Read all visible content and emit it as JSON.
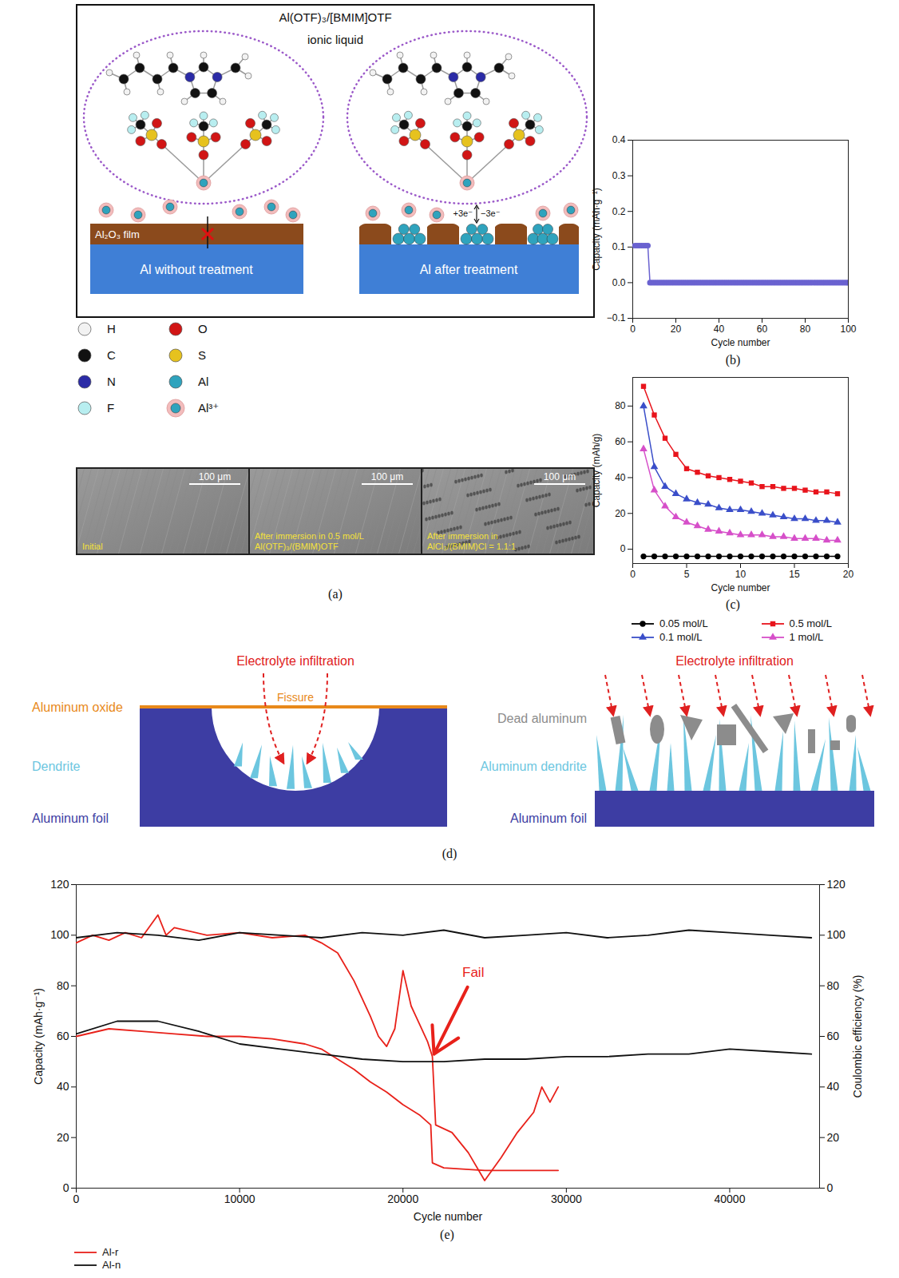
{
  "panels": {
    "a": {
      "label": "(a)",
      "schematic": {
        "title": "Al(OTF)₃/[BMIM]OTF",
        "subtitle": "ionic liquid",
        "film": "Al₂O₃ film",
        "left_substrate": "Al without treatment",
        "right_substrate": "Al after treatment",
        "reduction": "+3e⁻",
        "oxidation": "−3e⁻"
      },
      "atom_legend": [
        {
          "name": "H",
          "color": "#f2f2f2"
        },
        {
          "name": "C",
          "color": "#111111"
        },
        {
          "name": "N",
          "color": "#2b2ba6"
        },
        {
          "name": "F",
          "color": "#b8eef0"
        },
        {
          "name": "O",
          "color": "#d11515"
        },
        {
          "name": "S",
          "color": "#e6c21e"
        },
        {
          "name": "Al",
          "color": "#2fa3bd"
        },
        {
          "name": "Al³⁺",
          "color": "#f2bcbc"
        }
      ],
      "micrographs": [
        {
          "caption": "Initial",
          "scale_bar": "100 μm"
        },
        {
          "caption": "After immersion in 0.5 mol/L Al(OTF)₃/(BMIM)OTF",
          "scale_bar": "100 μm"
        },
        {
          "caption": "After immersion in AlCl₃/(BMIM)Cl = 1.1:1",
          "scale_bar": "100 μm"
        }
      ]
    },
    "d": {
      "label": "(d)",
      "left": {
        "infiltration": {
          "text": "Electrolyte infiltration",
          "color": "#e02020"
        },
        "crack": "Fissure",
        "layers": [
          {
            "name": "Aluminum oxide",
            "color": "#e8891a"
          },
          {
            "name": "Dendrite",
            "color": "#6cc6df"
          },
          {
            "name": "Aluminum foil",
            "color": "#3d3da3"
          }
        ]
      },
      "right": {
        "infiltration": {
          "text": "Electrolyte infiltration",
          "color": "#e02020"
        },
        "layers": [
          {
            "name": "Dead aluminum",
            "color": "#8c8c8c"
          },
          {
            "name": "Aluminum dendrite",
            "color": "#6cc6df"
          },
          {
            "name": "Aluminum foil",
            "color": "#3d3da3"
          }
        ]
      }
    }
  },
  "chart_data": [
    {
      "type": "line",
      "label": "(b)",
      "x_label": "Cycle number",
      "y_label": "Capacity (mAh·g⁻¹)",
      "color": "#6a62d0",
      "marker": "circle",
      "xlim": [
        0,
        100
      ],
      "xticks": [
        0,
        20,
        40,
        60,
        80,
        100
      ],
      "ylim": [
        -0.1,
        0.4
      ],
      "yticks": [
        {
          "value": -0.1,
          "label": "−0.1"
        },
        {
          "value": 0,
          "label": "0.0"
        },
        0.1,
        0.2,
        0.3,
        0.4
      ],
      "x": [
        1,
        2,
        3,
        4,
        5,
        6,
        7,
        8,
        9,
        10,
        11,
        12,
        13,
        14,
        15,
        16,
        17,
        18,
        19,
        20,
        21,
        22,
        23,
        24,
        25,
        26,
        27,
        28,
        29,
        30,
        31,
        32,
        33,
        34,
        35,
        36,
        37,
        38,
        39,
        40,
        41,
        42,
        43,
        44,
        45,
        46,
        47,
        48,
        49,
        50,
        51,
        52,
        53,
        54,
        55,
        56,
        57,
        58,
        59,
        60,
        61,
        62,
        63,
        64,
        65,
        66,
        67,
        68,
        69,
        70,
        71,
        72,
        73,
        74,
        75,
        76,
        77,
        78,
        79,
        80,
        81,
        82,
        83,
        84,
        85,
        86,
        87,
        88,
        89,
        90,
        91,
        92,
        93,
        94,
        95,
        96,
        97,
        98,
        99,
        100
      ],
      "values": [
        0.104,
        0.104,
        0.104,
        0.104,
        0.104,
        0.104,
        0.104,
        0,
        0,
        0,
        0,
        0,
        0,
        0,
        0,
        0,
        0,
        0,
        0,
        0,
        0,
        0,
        0,
        0,
        0,
        0,
        0,
        0,
        0,
        0,
        0,
        0,
        0,
        0,
        0,
        0,
        0,
        0,
        0,
        0,
        0,
        0,
        0,
        0,
        0,
        0,
        0,
        0,
        0,
        0,
        0,
        0,
        0,
        0,
        0,
        0,
        0,
        0,
        0,
        0,
        0,
        0,
        0,
        0,
        0,
        0,
        0,
        0,
        0,
        0,
        0,
        0,
        0,
        0,
        0,
        0,
        0,
        0,
        0,
        0,
        0,
        0,
        0,
        0,
        0,
        0,
        0,
        0,
        0,
        0,
        0,
        0,
        0,
        0,
        0,
        0,
        0,
        0,
        0,
        0
      ]
    },
    {
      "type": "line",
      "label": "(c)",
      "x_label": "Cycle number",
      "y_label": "Capacity (mAh/g)",
      "legend": "bottom",
      "xlim": [
        0,
        20
      ],
      "xticks": [
        0,
        5,
        10,
        15,
        20
      ],
      "ylim": [
        -8,
        96
      ],
      "yticks": [
        0,
        20,
        40,
        60,
        80
      ],
      "x": [
        1,
        2,
        3,
        4,
        5,
        6,
        7,
        8,
        9,
        10,
        11,
        12,
        13,
        14,
        15,
        16,
        17,
        18,
        19
      ],
      "series": [
        {
          "name": "0.05 mol/L",
          "color": "#000000",
          "marker": "circle",
          "values": [
            -4,
            -4,
            -4,
            -4,
            -4,
            -4,
            -4,
            -4,
            -4,
            -4,
            -4,
            -4,
            -4,
            -4,
            -4,
            -4,
            -4,
            -4,
            -4
          ]
        },
        {
          "name": "0.1 mol/L",
          "color": "#3a4ec9",
          "marker": "triangle",
          "values": [
            80,
            46,
            35,
            31,
            28,
            26,
            25,
            23,
            22,
            22,
            21,
            20,
            19,
            18,
            17,
            17,
            16,
            16,
            15
          ]
        },
        {
          "name": "0.5 mol/L",
          "color": "#e8141c",
          "marker": "square",
          "values": [
            91,
            75,
            62,
            53,
            45,
            43,
            41,
            40,
            39,
            38,
            37,
            35,
            35,
            34,
            34,
            33,
            32,
            32,
            31
          ]
        },
        {
          "name": "1 mol/L",
          "color": "#d64fc9",
          "marker": "triangle",
          "values": [
            56,
            33,
            24,
            18,
            15,
            13,
            11,
            10,
            9,
            8,
            8,
            8,
            7,
            7,
            6,
            6,
            6,
            5,
            5
          ]
        }
      ]
    },
    {
      "type": "line",
      "label": "(e)",
      "x_label": "Cycle number",
      "y_label": "Capacity (mAh·g⁻¹)",
      "y2_label": "Coulombic efficiency (%)",
      "legend": "bottom",
      "xlim": [
        0,
        45500
      ],
      "xticks": [
        0,
        10000,
        20000,
        30000,
        40000
      ],
      "ylim": [
        0,
        120
      ],
      "yticks": [
        0,
        20,
        40,
        60,
        80,
        100,
        120
      ],
      "y2lim": [
        0,
        120
      ],
      "y2ticks": [
        0,
        20,
        40,
        60,
        80,
        100,
        120
      ],
      "series": [
        {
          "name": "Al-r",
          "color": "#e8211a",
          "x": [
            0,
            2000,
            4000,
            6000,
            8000,
            10000,
            12000,
            14000,
            15000,
            16000,
            17000,
            18000,
            19000,
            20000,
            21000,
            21700,
            21800,
            22500,
            25000,
            27500,
            29500
          ],
          "values": [
            60,
            63,
            62,
            61,
            60,
            60,
            59,
            57,
            55,
            51,
            47,
            42,
            38,
            33,
            29,
            25,
            10,
            8,
            7,
            7,
            7
          ]
        },
        {
          "name": "Al-r",
          "color": "#e8211a",
          "axis": "y2",
          "x": [
            0,
            1000,
            2000,
            3000,
            4000,
            5000,
            5500,
            6000,
            8000,
            10000,
            12000,
            14000,
            15000,
            16000,
            17000,
            18000,
            18500,
            19000,
            19500,
            20000,
            20500,
            21000,
            21500,
            21800,
            22000,
            23000,
            24000,
            25000,
            26000,
            27000,
            28000,
            28500,
            29000,
            29500
          ],
          "values": [
            97,
            100,
            98,
            101,
            99,
            108,
            100,
            103,
            100,
            101,
            99,
            100,
            97,
            93,
            82,
            68,
            60,
            56,
            63,
            86,
            72,
            65,
            58,
            52,
            25,
            22,
            14,
            3,
            12,
            22,
            30,
            40,
            34,
            40
          ]
        },
        {
          "name": "Al-n",
          "color": "#111111",
          "x": [
            0,
            2500,
            5000,
            7500,
            10000,
            12500,
            15000,
            17500,
            20000,
            22500,
            25000,
            27500,
            30000,
            32500,
            35000,
            37500,
            40000,
            42500,
            45000
          ],
          "values": [
            61,
            66,
            66,
            62,
            57,
            55,
            53,
            51,
            50,
            50,
            51,
            51,
            52,
            52,
            53,
            53,
            55,
            54,
            53
          ]
        },
        {
          "name": "Al-n",
          "color": "#111111",
          "axis": "y2",
          "x": [
            0,
            2500,
            5000,
            7500,
            10000,
            12500,
            15000,
            17500,
            20000,
            22500,
            25000,
            27500,
            30000,
            32500,
            35000,
            37500,
            40000,
            42500,
            45000
          ],
          "values": [
            99,
            101,
            100,
            98,
            101,
            100,
            99,
            101,
            100,
            102,
            99,
            100,
            101,
            99,
            100,
            102,
            101,
            100,
            99
          ]
        }
      ],
      "annotations": [
        {
          "text": "Fail",
          "color": "#e8211a",
          "x": 24300,
          "y": 84,
          "arrow_to": [
            21900,
            53
          ]
        }
      ]
    }
  ]
}
